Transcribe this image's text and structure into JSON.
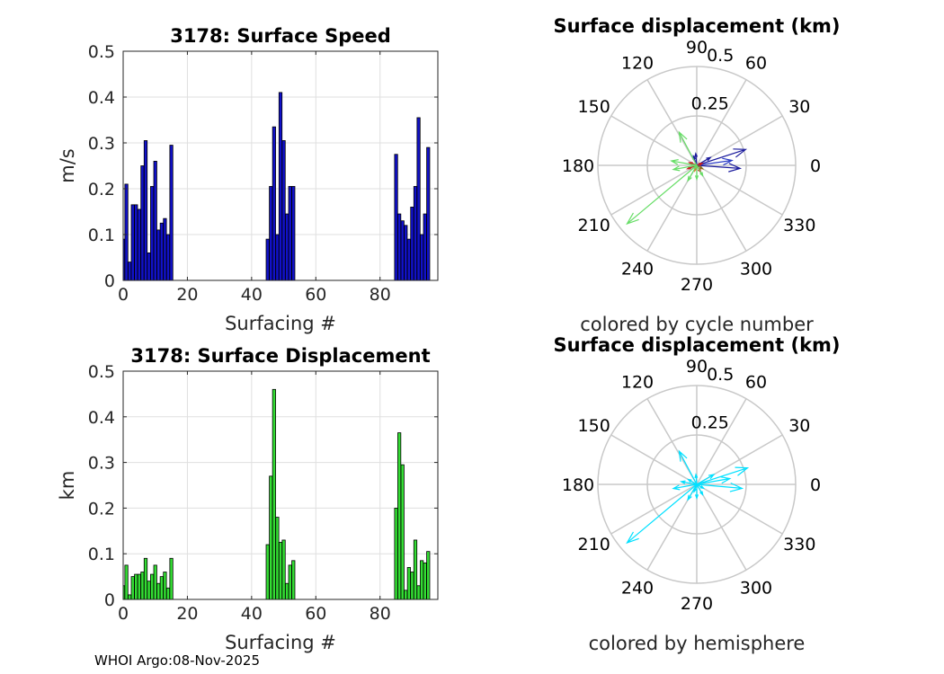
{
  "footer": "WHOI Argo:08-Nov-2025",
  "chart_data": [
    {
      "type": "bar",
      "title": "3178: Surface Speed",
      "xlabel": "Surfacing #",
      "ylabel": "m/s",
      "xlim": [
        0,
        98
      ],
      "ylim": [
        0,
        0.5
      ],
      "xticks": [
        0,
        20,
        40,
        60,
        80
      ],
      "yticks": [
        0,
        0.1,
        0.2,
        0.3,
        0.4,
        0.5
      ],
      "xtick_labels": [
        "0",
        "20",
        "40",
        "60",
        "80"
      ],
      "ytick_labels": [
        "0",
        "0.1",
        "0.2",
        "0.3",
        "0.4",
        "0.5"
      ],
      "bar_color": "#1111c8",
      "x": [
        0,
        1,
        2,
        3,
        4,
        5,
        6,
        7,
        8,
        9,
        10,
        11,
        12,
        13,
        14,
        15,
        45,
        46,
        47,
        48,
        49,
        50,
        51,
        52,
        53,
        85,
        86,
        87,
        88,
        89,
        90,
        91,
        92,
        93,
        94,
        95
      ],
      "values": [
        0.09,
        0.21,
        0.04,
        0.165,
        0.165,
        0.155,
        0.25,
        0.305,
        0.06,
        0.205,
        0.26,
        0.11,
        0.125,
        0.135,
        0.1,
        0.295,
        0.09,
        0.205,
        0.335,
        0.1,
        0.41,
        0.305,
        0.145,
        0.205,
        0.205,
        0.275,
        0.145,
        0.13,
        0.12,
        0.09,
        0.16,
        0.205,
        0.355,
        0.1,
        0.145,
        0.29
      ]
    },
    {
      "type": "bar",
      "title": "3178: Surface Displacement",
      "xlabel": "Surfacing #",
      "ylabel": "km",
      "xlim": [
        0,
        98
      ],
      "ylim": [
        0,
        0.5
      ],
      "xticks": [
        0,
        20,
        40,
        60,
        80
      ],
      "yticks": [
        0,
        0.1,
        0.2,
        0.3,
        0.4,
        0.5
      ],
      "xtick_labels": [
        "0",
        "20",
        "40",
        "60",
        "80"
      ],
      "ytick_labels": [
        "0",
        "0.1",
        "0.2",
        "0.3",
        "0.4",
        "0.5"
      ],
      "bar_color": "#33dd33",
      "x": [
        0,
        1,
        2,
        3,
        4,
        5,
        6,
        7,
        8,
        9,
        10,
        11,
        12,
        13,
        14,
        15,
        45,
        46,
        47,
        48,
        49,
        50,
        51,
        52,
        53,
        85,
        86,
        87,
        88,
        89,
        90,
        91,
        92,
        93,
        94,
        95
      ],
      "values": [
        0.03,
        0.075,
        0.01,
        0.05,
        0.055,
        0.055,
        0.06,
        0.09,
        0.04,
        0.055,
        0.075,
        0.035,
        0.05,
        0.06,
        0.025,
        0.09,
        0.12,
        0.27,
        0.46,
        0.18,
        0.125,
        0.13,
        0.035,
        0.075,
        0.085,
        0.2,
        0.365,
        0.295,
        0.02,
        0.07,
        0.06,
        0.13,
        0.03,
        0.085,
        0.08,
        0.105
      ]
    },
    {
      "type": "polar",
      "title": "Surface displacement (km)",
      "caption": "colored by cycle number",
      "rlim": [
        0,
        0.5
      ],
      "r_tick_labels": [
        "0.25",
        "0.5"
      ],
      "theta_tick_labels": [
        "0",
        "30",
        "60",
        "90",
        "120",
        "150",
        "180",
        "210",
        "240",
        "270",
        "300",
        "330"
      ],
      "vectors": [
        {
          "r": 0.26,
          "theta": 18,
          "color": "#1a1a9c"
        },
        {
          "r": 0.22,
          "theta": 356,
          "color": "#1a1a9c"
        },
        {
          "r": 0.18,
          "theta": 8,
          "color": "#2a3cc6"
        },
        {
          "r": 0.08,
          "theta": 30,
          "color": "#1a1a9c"
        },
        {
          "r": 0.06,
          "theta": 95,
          "color": "#1a1a9c"
        },
        {
          "r": 0.05,
          "theta": 110,
          "color": "#1a1a9c"
        },
        {
          "r": 0.05,
          "theta": 200,
          "color": "#c81e1e"
        },
        {
          "r": 0.04,
          "theta": 160,
          "color": "#c81e1e"
        },
        {
          "r": 0.03,
          "theta": 250,
          "color": "#e07020"
        },
        {
          "r": 0.04,
          "theta": 300,
          "color": "#c81e1e"
        },
        {
          "r": 0.03,
          "theta": 20,
          "color": "#c81e1e"
        },
        {
          "r": 0.035,
          "theta": 330,
          "color": "#8b6d1e"
        },
        {
          "r": 0.46,
          "theta": 220,
          "color": "#66dd66"
        },
        {
          "r": 0.19,
          "theta": 118,
          "color": "#66dd66"
        },
        {
          "r": 0.12,
          "theta": 190,
          "color": "#66dd66"
        },
        {
          "r": 0.13,
          "theta": 170,
          "color": "#66dd66"
        },
        {
          "r": 0.09,
          "theta": 240,
          "color": "#66dd66"
        },
        {
          "r": 0.07,
          "theta": 270,
          "color": "#66dd66"
        },
        {
          "r": 0.06,
          "theta": 300,
          "color": "#66dd66"
        }
      ]
    },
    {
      "type": "polar",
      "title": "Surface displacement (km)",
      "caption": "colored by hemisphere",
      "rlim": [
        0,
        0.5
      ],
      "r_tick_labels": [
        "0.25",
        "0.5"
      ],
      "theta_tick_labels": [
        "0",
        "30",
        "60",
        "90",
        "120",
        "150",
        "180",
        "210",
        "240",
        "270",
        "300",
        "330"
      ],
      "vectors": [
        {
          "r": 0.46,
          "theta": 220,
          "color": "#00e0ff"
        },
        {
          "r": 0.27,
          "theta": 18,
          "color": "#00e0ff"
        },
        {
          "r": 0.23,
          "theta": 355,
          "color": "#00e0ff"
        },
        {
          "r": 0.19,
          "theta": 118,
          "color": "#00e0ff"
        },
        {
          "r": 0.17,
          "theta": 10,
          "color": "#00e0ff"
        },
        {
          "r": 0.12,
          "theta": 190,
          "color": "#00e0ff"
        },
        {
          "r": 0.1,
          "theta": 30,
          "color": "#00e0ff"
        },
        {
          "r": 0.09,
          "theta": 240,
          "color": "#00e0ff"
        },
        {
          "r": 0.08,
          "theta": 170,
          "color": "#00e0ff"
        },
        {
          "r": 0.07,
          "theta": 270,
          "color": "#00e0ff"
        },
        {
          "r": 0.06,
          "theta": 300,
          "color": "#00e0ff"
        },
        {
          "r": 0.05,
          "theta": 95,
          "color": "#00e0ff"
        },
        {
          "r": 0.05,
          "theta": 150,
          "color": "#00e0ff"
        },
        {
          "r": 0.04,
          "theta": 330,
          "color": "#00e0ff"
        },
        {
          "r": 0.04,
          "theta": 250,
          "color": "#00e0ff"
        }
      ]
    }
  ]
}
